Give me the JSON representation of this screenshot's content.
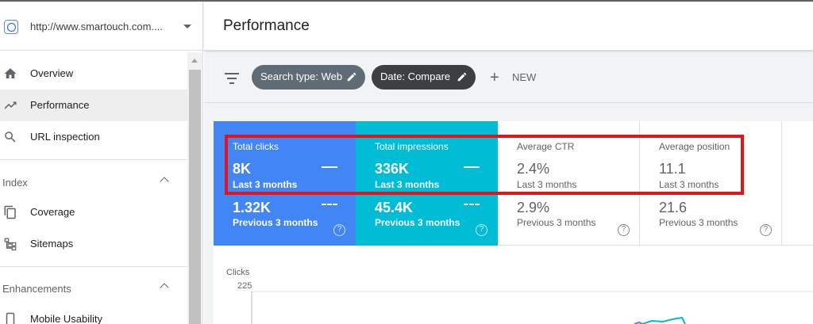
{
  "property": {
    "url": "http://www.smartouch.com....",
    "globe_icon": "globe-icon",
    "caret_icon": "caret-down-icon"
  },
  "sidebar": {
    "items": [
      {
        "label": "Overview",
        "icon": "home-icon"
      },
      {
        "label": "Performance",
        "icon": "trending-up-icon",
        "active": true
      },
      {
        "label": "URL inspection",
        "icon": "search-icon"
      }
    ],
    "sections": [
      {
        "label": "Index",
        "items": [
          {
            "label": "Coverage",
            "icon": "copy-icon"
          },
          {
            "label": "Sitemaps",
            "icon": "sitemap-icon"
          }
        ]
      },
      {
        "label": "Enhancements",
        "items": [
          {
            "label": "Mobile Usability",
            "icon": "phone-icon"
          }
        ]
      }
    ]
  },
  "header": {
    "title": "Performance"
  },
  "filters": {
    "chips": [
      {
        "label": "Search type: Web",
        "icon": "edit-icon",
        "color": "#5f6b75"
      },
      {
        "label": "Date: Compare",
        "icon": "edit-icon",
        "color": "#3c4043"
      }
    ],
    "new_label": "NEW"
  },
  "metrics": [
    {
      "title": "Total clicks",
      "current": "8K",
      "current_period": "Last 3 months",
      "previous": "1.32K",
      "previous_period": "Previous 3 months",
      "color": "#4285f4",
      "selected": true
    },
    {
      "title": "Total impressions",
      "current": "336K",
      "current_period": "Last 3 months",
      "previous": "45.4K",
      "previous_period": "Previous 3 months",
      "color": "#00bcd4",
      "selected": true
    },
    {
      "title": "Average CTR",
      "current": "2.4%",
      "current_period": "Last 3 months",
      "previous": "2.9%",
      "previous_period": "Previous 3 months",
      "selected": false
    },
    {
      "title": "Average position",
      "current": "11.1",
      "current_period": "Last 3 months",
      "previous": "21.6",
      "previous_period": "Previous 3 months",
      "selected": false
    }
  ],
  "help_glyph": "?",
  "highlight_color": "#e4141b",
  "chart_data": {
    "type": "line",
    "ylabel": "Clicks",
    "yticks": [
      "225"
    ],
    "series": []
  }
}
